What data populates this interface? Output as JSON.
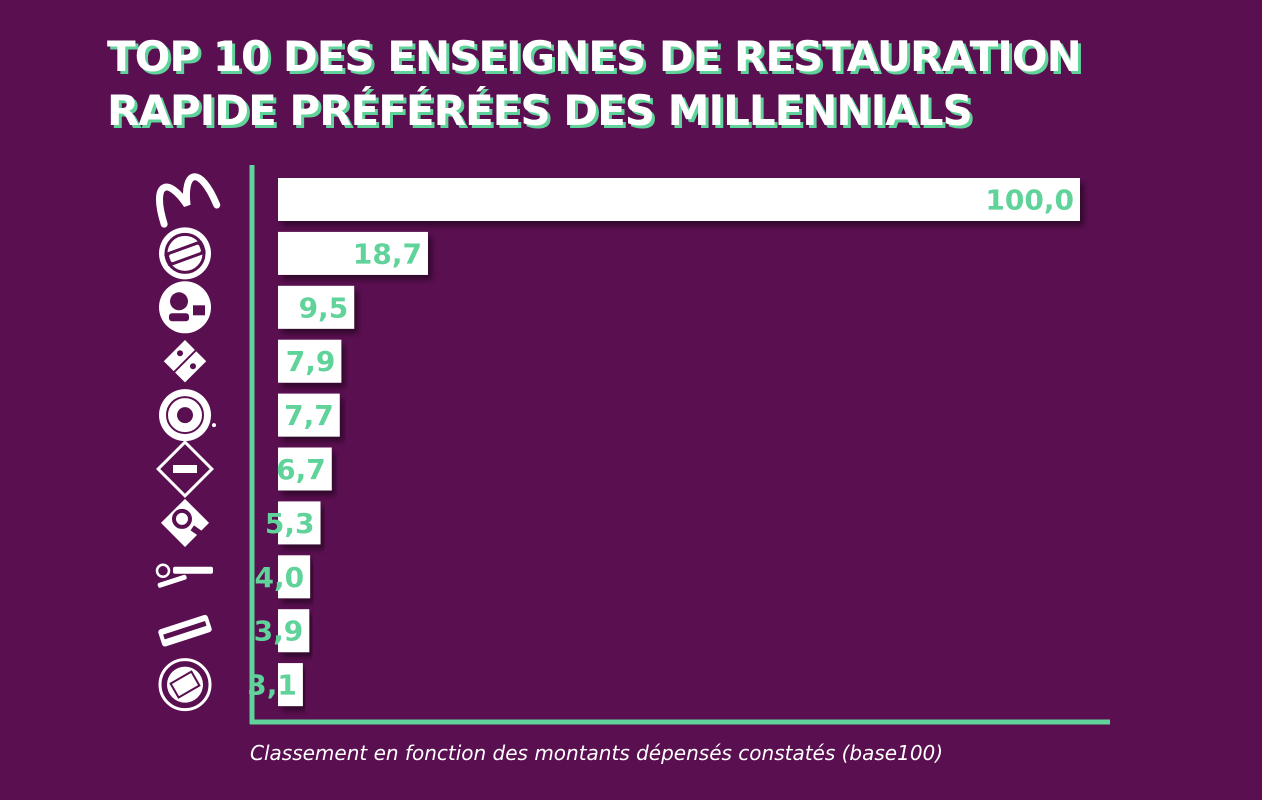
{
  "title": {
    "line1": "TOP 10 DES ENSEIGNES DE RESTAURATION",
    "line2": "RAPIDE PRÉFÉRÉES DES MILLENNIALS"
  },
  "caption": "Classement en fonction des montants dépensés constatés (base100)",
  "colors": {
    "background": "#5a0f50",
    "accent": "#5fd39a",
    "bar": "#ffffff",
    "logo": "#ffffff"
  },
  "chart_data": {
    "type": "bar",
    "orientation": "horizontal",
    "title": "TOP 10 DES ENSEIGNES DE RESTAURATION RAPIDE PRÉFÉRÉES DES MILLENNIALS",
    "xlabel": "Classement en fonction des montants dépensés constatés (base100)",
    "ylabel": "",
    "xlim": [
      0,
      100
    ],
    "categories": [
      "McDonald's",
      "Burger King",
      "KFC",
      "Domino's Pizza",
      "Starbucks Coffee",
      "Paul",
      "Quick",
      "Sushi Shop",
      "Subway",
      "Class'Croute"
    ],
    "values": [
      100.0,
      18.7,
      9.5,
      7.9,
      7.7,
      6.7,
      5.3,
      4.0,
      3.9,
      3.1
    ],
    "value_labels": [
      "100,0",
      "18,7",
      "9,5",
      "7,9",
      "7,7",
      "6,7",
      "5,3",
      "4,0",
      "3,9",
      "3,1"
    ],
    "logos": [
      "mcdonalds-logo",
      "burger-king-logo",
      "kfc-logo",
      "dominos-logo",
      "starbucks-logo",
      "paul-logo",
      "quick-logo",
      "sushishop-logo",
      "subway-logo",
      "classcroute-logo"
    ]
  }
}
